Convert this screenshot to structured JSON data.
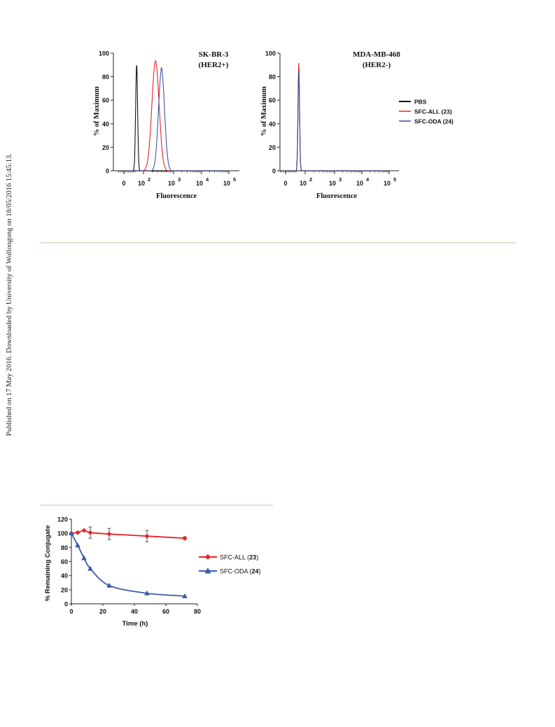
{
  "page": {
    "sidebar_text": "Published on 17 May 2016. Downloaded by University of Wollongong on 18/05/2016 15:45:13."
  },
  "chart_data": [
    {
      "type": "line",
      "panel": "left",
      "title_lines": [
        "SK-BR-3",
        "(HER2+)"
      ],
      "xlabel": "Fluorescence",
      "ylabel": "% of Maximum",
      "x_scale": "logicle",
      "x_ticks": [
        {
          "base": "0",
          "exp": ""
        },
        {
          "base": "10",
          "exp": "2"
        },
        {
          "base": "10",
          "exp": "3"
        },
        {
          "base": "10",
          "exp": "4"
        },
        {
          "base": "10",
          "exp": "5"
        }
      ],
      "yticks": [
        "0",
        "20",
        "40",
        "60",
        "80",
        "100"
      ],
      "ylim": [
        0,
        100
      ],
      "series": [
        {
          "name": "PBS",
          "color": "#111111",
          "peak_decade": 1.3,
          "height": 90,
          "width": 0.1
        },
        {
          "name": "SFC-ALL (23)",
          "color": "#e5232a",
          "peak_decade": 2.4,
          "height": 93,
          "width": 0.12
        },
        {
          "name": "SFC-ODA (24)",
          "color": "#3f55a4",
          "peak_decade": 2.6,
          "height": 87,
          "width": 0.1
        }
      ]
    },
    {
      "type": "line",
      "panel": "right",
      "title_lines": [
        "MDA-MB-468",
        "(HER2-)"
      ],
      "xlabel": "Fluorescence",
      "ylabel": "% of Maximum",
      "x_scale": "logicle",
      "x_ticks": [
        {
          "base": "0",
          "exp": ""
        },
        {
          "base": "10",
          "exp": "2"
        },
        {
          "base": "10",
          "exp": "3"
        },
        {
          "base": "10",
          "exp": "4"
        },
        {
          "base": "10",
          "exp": "5"
        }
      ],
      "yticks": [
        "0",
        "20",
        "40",
        "60",
        "80",
        "100"
      ],
      "ylim": [
        0,
        100
      ],
      "series": [
        {
          "name": "PBS",
          "color": "#111111",
          "peak_decade": 1.35,
          "height": 87,
          "width": 0.08
        },
        {
          "name": "SFC-ALL (23)",
          "color": "#e5232a",
          "peak_decade": 1.35,
          "height": 91,
          "width": 0.08
        },
        {
          "name": "SFC-ODA (24)",
          "color": "#3f55a4",
          "peak_decade": 1.35,
          "height": 86,
          "width": 0.08
        }
      ]
    },
    {
      "type": "line",
      "panel": "bottom",
      "xlabel": "Time (h)",
      "ylabel": "% Remaining Conjugate",
      "xlim": [
        0,
        80
      ],
      "ylim": [
        0,
        120
      ],
      "xticks": [
        "0",
        "20",
        "40",
        "60",
        "80"
      ],
      "yticks": [
        "0",
        "20",
        "40",
        "60",
        "80",
        "100",
        "120"
      ],
      "series": [
        {
          "name": "SFC-ALL",
          "name_bold": "23",
          "color": "#e5232a",
          "marker": "diamond",
          "x": [
            0,
            4,
            8,
            12,
            24,
            48,
            72
          ],
          "y": [
            100,
            101,
            104,
            101,
            99,
            96,
            93
          ],
          "err": [
            0,
            0,
            0,
            8,
            8,
            8,
            2
          ]
        },
        {
          "name": "SFC-ODA",
          "name_bold": "24",
          "color": "#3c5ba8",
          "marker": "triangle",
          "x": [
            0,
            4,
            8,
            12,
            24,
            48,
            72
          ],
          "y": [
            100,
            83,
            65,
            50,
            26,
            15,
            11
          ],
          "err": [
            0,
            0,
            0,
            0,
            0,
            0,
            0
          ]
        }
      ]
    }
  ]
}
